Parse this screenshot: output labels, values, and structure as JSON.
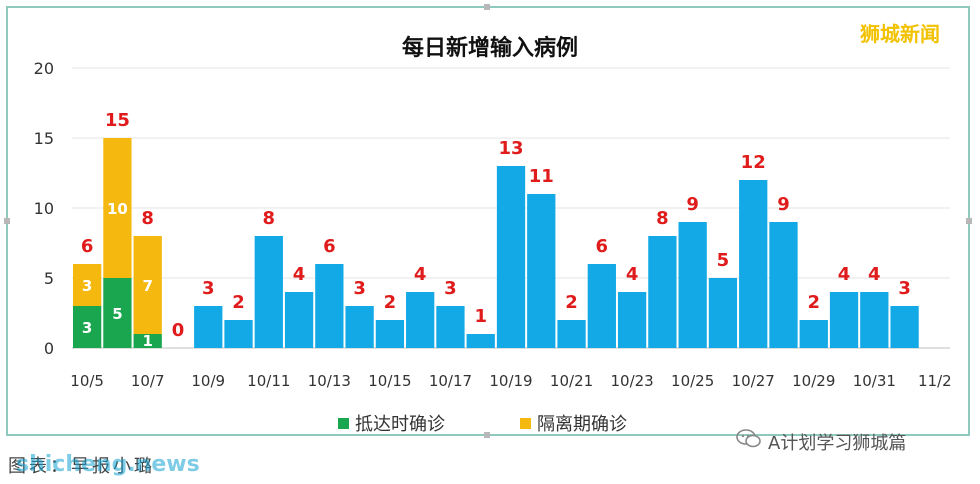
{
  "header": {
    "title": "每日新增输入病例",
    "brand": "狮城新闻"
  },
  "legend": {
    "items": [
      {
        "label": "抵达时确诊",
        "color": "#1aa54f"
      },
      {
        "label": "隔离期确诊",
        "color": "#f5b80f"
      }
    ]
  },
  "footer": {
    "caption": "图表：早报小璐",
    "watermark_site": "shicheng.news",
    "wechat_account": "A计划学习狮城篇"
  },
  "colors": {
    "arrival": "#1aa54f",
    "quarantine": "#f5b80f",
    "total": "#12a9e6",
    "total_label": "#e01b1b"
  },
  "chart_data": {
    "type": "bar",
    "title": "每日新增输入病例",
    "ylim": [
      0,
      20
    ],
    "yticks": [
      0,
      5,
      10,
      15,
      20
    ],
    "grid": true,
    "legend_position": "bottom",
    "categories": [
      "10/5",
      "10/6",
      "10/7",
      "10/8",
      "10/9",
      "10/10",
      "10/11",
      "10/12",
      "10/13",
      "10/14",
      "10/15",
      "10/16",
      "10/17",
      "10/18",
      "10/19",
      "10/20",
      "10/21",
      "10/22",
      "10/23",
      "10/24",
      "10/25",
      "10/26",
      "10/27",
      "10/28",
      "10/29",
      "10/30",
      "10/31",
      "11/1",
      "11/2"
    ],
    "xtick_labels": [
      "10/5",
      "",
      "10/7",
      "",
      "10/9",
      "",
      "10/11",
      "",
      "10/13",
      "",
      "10/15",
      "",
      "10/17",
      "",
      "10/19",
      "",
      "10/21",
      "",
      "10/23",
      "",
      "10/25",
      "",
      "10/27",
      "",
      "10/29",
      "",
      "10/31",
      "",
      "11/2"
    ],
    "series": [
      {
        "name": "抵达时确诊",
        "values": [
          3,
          5,
          1,
          null,
          null,
          null,
          null,
          null,
          null,
          null,
          null,
          null,
          null,
          null,
          null,
          null,
          null,
          null,
          null,
          null,
          null,
          null,
          null,
          null,
          null,
          null,
          null,
          null,
          null
        ]
      },
      {
        "name": "隔离期确诊",
        "values": [
          3,
          10,
          7,
          null,
          null,
          null,
          null,
          null,
          null,
          null,
          null,
          null,
          null,
          null,
          null,
          null,
          null,
          null,
          null,
          null,
          null,
          null,
          null,
          null,
          null,
          null,
          null,
          null,
          null
        ]
      },
      {
        "name": "",
        "values": [
          null,
          null,
          null,
          0,
          3,
          2,
          8,
          4,
          6,
          3,
          2,
          4,
          3,
          1,
          13,
          11,
          2,
          6,
          4,
          8,
          9,
          5,
          12,
          9,
          2,
          4,
          4,
          3,
          null
        ]
      }
    ],
    "totals": [
      6,
      15,
      8,
      0,
      3,
      2,
      8,
      4,
      6,
      3,
      2,
      4,
      3,
      1,
      13,
      11,
      2,
      6,
      4,
      8,
      9,
      5,
      12,
      9,
      2,
      4,
      4,
      3,
      null
    ]
  }
}
